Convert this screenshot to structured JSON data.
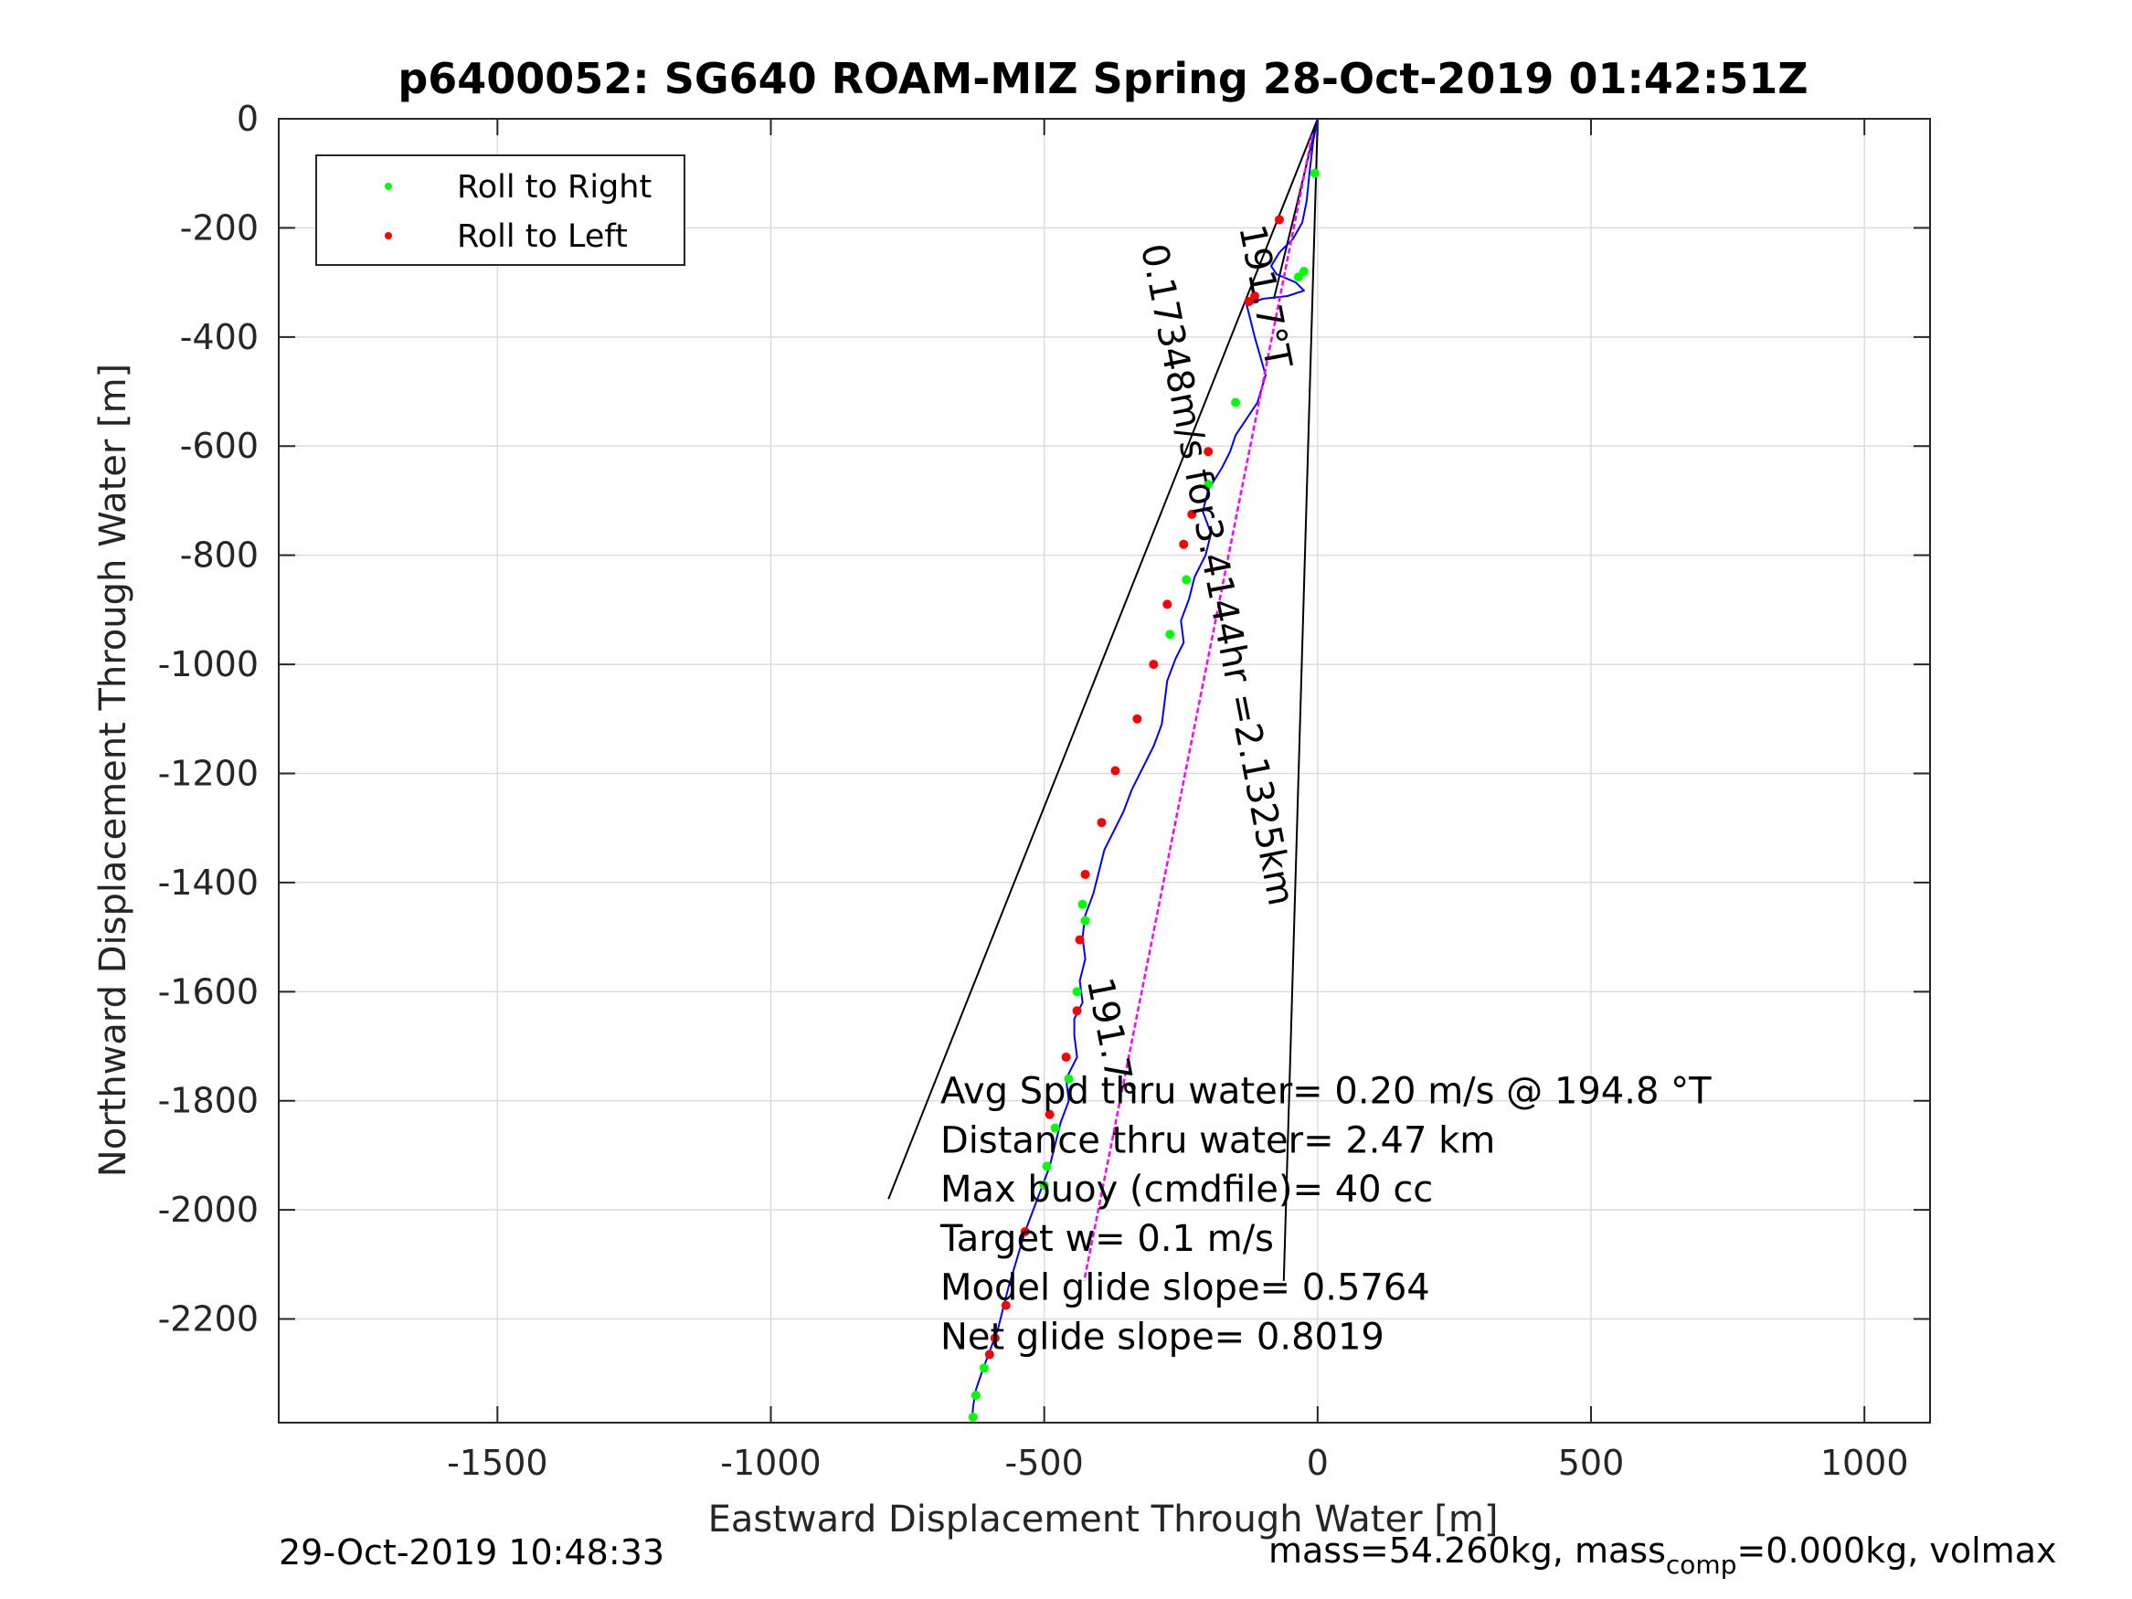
{
  "chart_data": {
    "type": "line",
    "title": "p6400052: SG640 ROAM-MIZ Spring 28-Oct-2019 01:42:51Z",
    "xlabel": "Eastward Displacement Through Water [m]",
    "ylabel": "Northward Displacement Through Water [m]",
    "xlim": [
      -1900,
      1120
    ],
    "ylim": [
      -2390,
      0
    ],
    "xticks": [
      -1500,
      -1000,
      -500,
      0,
      500,
      1000
    ],
    "yticks": [
      0,
      -200,
      -400,
      -600,
      -800,
      -1000,
      -1200,
      -1400,
      -1600,
      -1800,
      -2000,
      -2200
    ],
    "grid": true,
    "legend": {
      "placement": "top-left",
      "entries": [
        {
          "label": "Roll to Right",
          "color": "#00ff00"
        },
        {
          "label": "Roll to Left",
          "color": "#ff0000"
        }
      ]
    },
    "series": [
      {
        "kind": "track",
        "color": "#0000ff",
        "x": [
          0,
          -8,
          -15,
          -20,
          -28,
          -45,
          -70,
          -85,
          -75,
          -40,
          -25,
          -55,
          -100,
          -130,
          -115,
          -95,
          -110,
          -150,
          -160,
          -175,
          -200,
          -210,
          -195,
          -205,
          -225,
          -235,
          -250,
          -245,
          -260,
          -275,
          -280,
          -285,
          -300,
          -320,
          -340,
          -355,
          -370,
          -390,
          -400,
          -410,
          -425,
          -430,
          -425,
          -435,
          -430,
          -445,
          -445,
          -440,
          -460,
          -455,
          -470,
          -480,
          -490,
          -505,
          -520,
          -535,
          -550,
          -565,
          -575,
          -585,
          -600,
          -615,
          -625,
          -630,
          -632
        ],
        "y": [
          0,
          -40,
          -100,
          -150,
          -190,
          -220,
          -245,
          -270,
          -285,
          -300,
          -315,
          -325,
          -330,
          -340,
          -400,
          -470,
          -520,
          -580,
          -610,
          -640,
          -680,
          -720,
          -760,
          -800,
          -840,
          -880,
          -920,
          -960,
          -990,
          -1030,
          -1070,
          -1110,
          -1150,
          -1190,
          -1230,
          -1270,
          -1300,
          -1340,
          -1380,
          -1420,
          -1460,
          -1500,
          -1540,
          -1580,
          -1620,
          -1650,
          -1680,
          -1720,
          -1760,
          -1800,
          -1840,
          -1880,
          -1920,
          -1960,
          -2000,
          -2040,
          -2090,
          -2140,
          -2180,
          -2220,
          -2260,
          -2300,
          -2330,
          -2360,
          -2385
        ]
      },
      {
        "kind": "heading-line",
        "color": "#ff00ff",
        "x": [
          -10,
          -427
        ],
        "y": [
          -30,
          -2130
        ]
      },
      {
        "kind": "reference-line",
        "color": "#000000",
        "x": [
          0,
          -785
        ],
        "y": [
          0,
          -1980
        ]
      },
      {
        "kind": "reference-line",
        "color": "#000000",
        "x": [
          0,
          -62
        ],
        "y": [
          0,
          -2130
        ]
      },
      {
        "kind": "reference-line",
        "color": "#000000",
        "x": [
          -80,
          0
        ],
        "y": [
          -330,
          0
        ]
      }
    ],
    "markers": {
      "roll_right": {
        "color": "#00ff00",
        "x": [
          -5,
          -25,
          -35,
          -150,
          -200,
          -240,
          -270,
          -430,
          -425,
          -440,
          -455,
          -480,
          -495,
          -500,
          -610,
          -625,
          -630
        ],
        "y": [
          -100,
          -280,
          -290,
          -520,
          -670,
          -845,
          -945,
          -1440,
          -1470,
          -1600,
          -1760,
          -1850,
          -1920,
          -1955,
          -2290,
          -2340,
          -2380
        ]
      },
      "roll_left": {
        "color": "#ff0000",
        "x": [
          -70,
          -115,
          -125,
          -200,
          -230,
          -245,
          -275,
          -300,
          -330,
          -370,
          -395,
          -425,
          -435,
          -440,
          -460,
          -490,
          -535,
          -570,
          -590,
          -600
        ],
        "y": [
          -185,
          -325,
          -335,
          -610,
          -725,
          -780,
          -890,
          -1000,
          -1100,
          -1195,
          -1290,
          -1385,
          -1505,
          -1635,
          -1720,
          -1825,
          -2040,
          -2175,
          -2235,
          -2265
        ]
      }
    },
    "annotations": [
      {
        "text": "0.17348m/s for3.4144hr =2.1325km",
        "x": -205,
        "y": -840,
        "rotate": 79
      },
      {
        "text": "191.7°T",
        "x": -118,
        "y": -330,
        "rotate": 79
      },
      {
        "text": "191.7°",
        "x": -400,
        "y": -1690,
        "rotate": 79
      },
      {
        "text": "Avg Spd thru water=  0.20 m/s @ 194.8 °T",
        "x": -690,
        "y": -1805
      },
      {
        "text": "Distance thru water=  2.47 km",
        "x": -690,
        "y": -1895
      },
      {
        "text": "Max buoy (cmdfile)= 40 cc",
        "x": -690,
        "y": -1985
      },
      {
        "text": "Target w= 0.1 m/s",
        "x": -690,
        "y": -2075
      },
      {
        "text": "Model glide slope= 0.5764",
        "x": -690,
        "y": -2165
      },
      {
        "text": "Net glide slope= 0.8019",
        "x": -690,
        "y": -2255
      }
    ]
  },
  "footer": {
    "timestamp": "29-Oct-2019 10:48:33",
    "mass_main": "mass=54.260kg, mass",
    "mass_sub": "comp",
    "mass_tail": "=0.000kg, volmax"
  }
}
